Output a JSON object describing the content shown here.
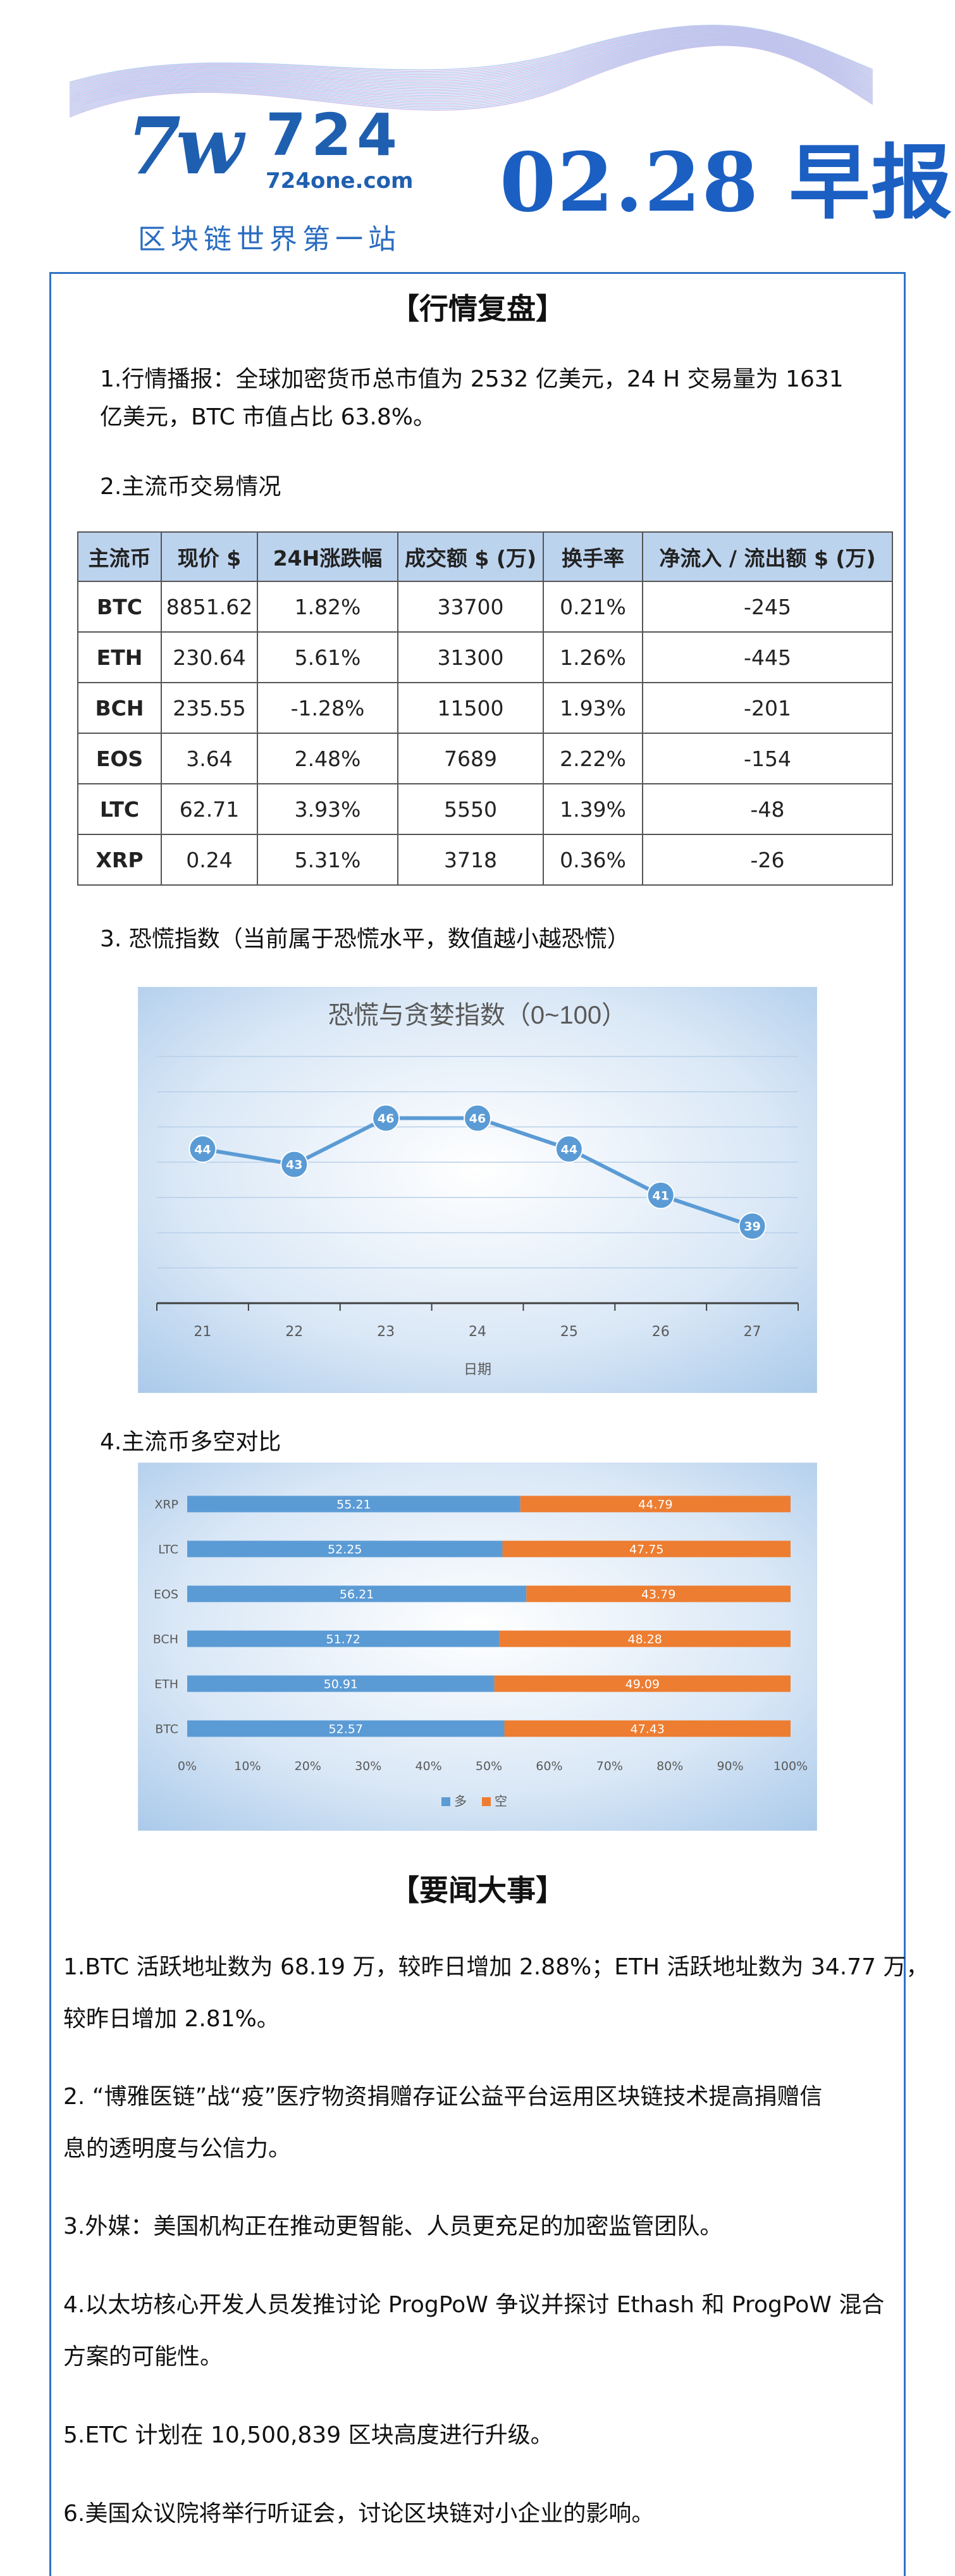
{
  "header": {
    "logo_mark": "7w",
    "logo_number": "724",
    "logo_url": "724one.com",
    "slogan": "区块链世界第一站",
    "date_title": "02.28 早报"
  },
  "market": {
    "title": "【行情复盘】",
    "summary_line1": "1.行情播报：全球加密货币总市值为 2532 亿美元，24 H 交易量为 1631",
    "summary_line2": "亿美元，BTC 市值占比  63.8%。",
    "table_heading": "2.主流币交易情况",
    "columns": [
      "主流币",
      "现价 $",
      "24H涨跌幅",
      "成交额 $ (万)",
      "换手率",
      "净流入 / 流出额 $ (万)"
    ],
    "rows": [
      [
        "BTC",
        "8851.62",
        "1.82%",
        "33700",
        "0.21%",
        "-245"
      ],
      [
        "ETH",
        "230.64",
        "5.61%",
        "31300",
        "1.26%",
        "-445"
      ],
      [
        "BCH",
        "235.55",
        "-1.28%",
        "11500",
        "1.93%",
        "-201"
      ],
      [
        "EOS",
        "3.64",
        "2.48%",
        "7689",
        "2.22%",
        "-154"
      ],
      [
        "LTC",
        "62.71",
        "3.93%",
        "5550",
        "1.39%",
        "-48"
      ],
      [
        "XRP",
        "0.24",
        "5.31%",
        "3718",
        "0.36%",
        "-26"
      ]
    ],
    "fear_heading": "3.  恐慌指数（当前属于恐慌水平，数值越小越恐慌）",
    "ls_heading": "4.主流币多空对比"
  },
  "chart_data": [
    {
      "type": "line",
      "title": "恐慌与贪婪指数（0~100）",
      "xlabel": "日期",
      "ylabel": "",
      "x": [
        21,
        22,
        23,
        24,
        25,
        26,
        27
      ],
      "series": [
        {
          "values": [
            44,
            43,
            46,
            46,
            44,
            41,
            39
          ]
        }
      ],
      "ylim": [
        34,
        50
      ],
      "grid": true,
      "colors": {
        "line": "#5b9bd5",
        "marker_text": "#ffffff"
      }
    },
    {
      "type": "bar",
      "orientation": "horizontal",
      "stacked": true,
      "categories": [
        "XRP",
        "LTC",
        "EOS",
        "BCH",
        "ETH",
        "BTC"
      ],
      "series": [
        {
          "name": "多",
          "values": [
            55.21,
            52.25,
            56.21,
            51.72,
            50.91,
            52.57
          ],
          "color": "#5b9bd5"
        },
        {
          "name": "空",
          "values": [
            44.79,
            47.75,
            43.79,
            48.28,
            49.09,
            47.43
          ],
          "color": "#ed7d31"
        }
      ],
      "xticks": [
        "0%",
        "10%",
        "20%",
        "30%",
        "40%",
        "50%",
        "60%",
        "70%",
        "80%",
        "90%",
        "100%"
      ],
      "xlim": [
        0,
        100
      ],
      "legend": "bottom"
    }
  ],
  "news": {
    "title": "【要闻大事】",
    "items": [
      {
        "line1": "1.BTC 活跃地址数为 68.19 万，较昨日增加 2.88%；ETH 活跃地址数为 34.77 万，",
        "line2": "较昨日增加 2.81%。"
      },
      {
        "line1": "2. “博雅医链”战“疫”医疗物资捐赠存证公益平台运用区块链技术提高捐赠信",
        "line2": "息的透明度与公信力。"
      },
      {
        "line1": "3.外媒：美国机构正在推动更智能、人员更充足的加密监管团队。",
        "line2": ""
      },
      {
        "line1": "4.以太坊核心开发人员发推讨论 ProgPoW 争议并探讨 Ethash 和 ProgPoW 混合",
        "line2": "方案的可能性。"
      },
      {
        "line1": "5.ETC 计划在 10,500,839 区块高度进行升级。",
        "line2": ""
      },
      {
        "line1": "6.美国众议院将举行听证会，讨论区块链对小企业的影响。",
        "line2": ""
      }
    ]
  }
}
